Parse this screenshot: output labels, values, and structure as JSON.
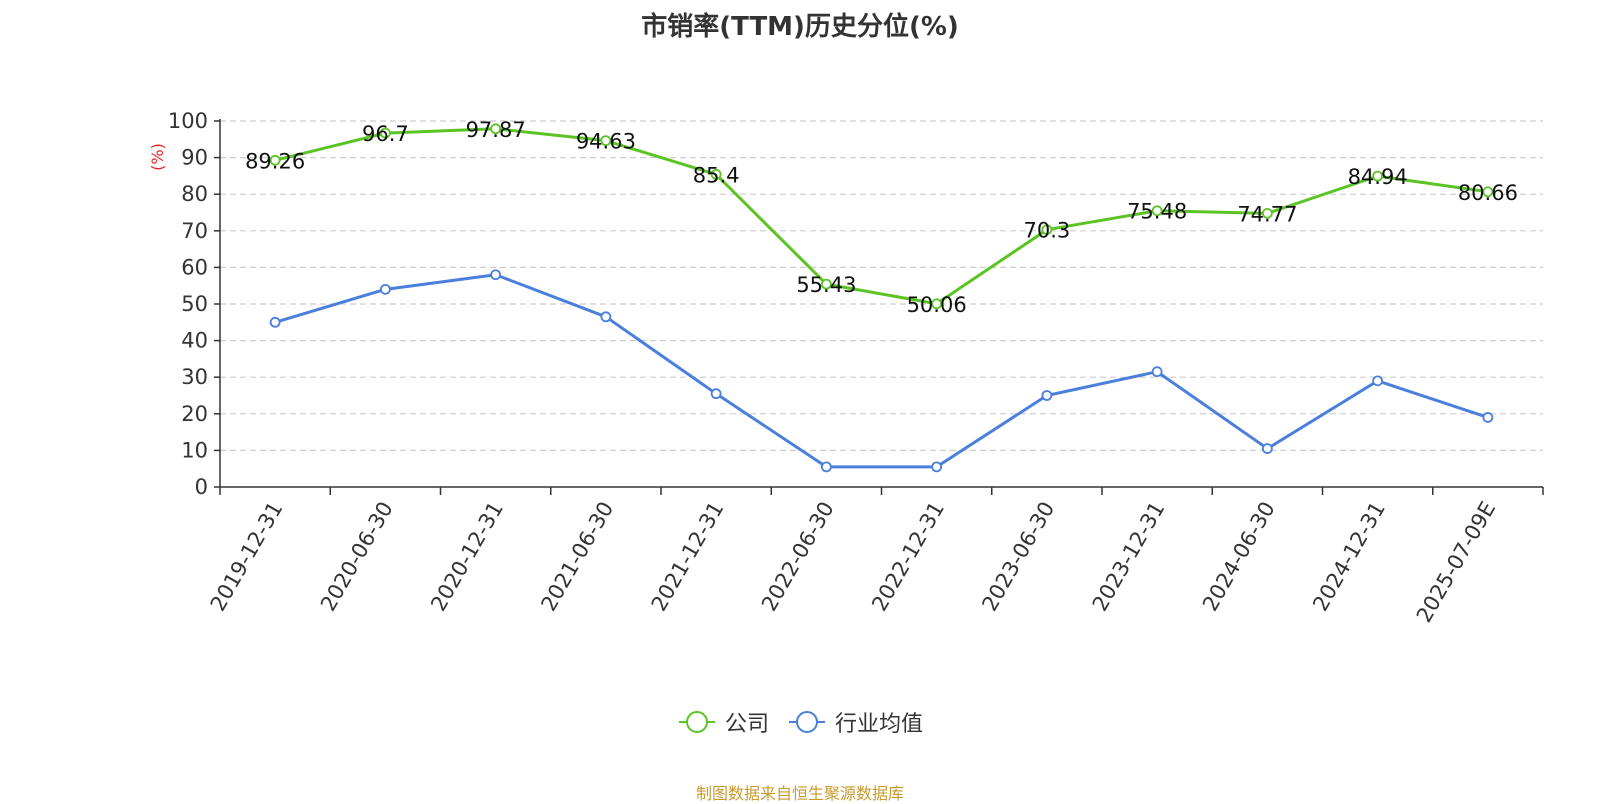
{
  "chart_data": {
    "type": "line",
    "title": "市销率(TTM)历史分位(%)",
    "ylabel": "(%)",
    "xlabel": "",
    "categories": [
      "2019-12-31",
      "2020-06-30",
      "2020-12-31",
      "2021-06-30",
      "2021-12-31",
      "2022-06-30",
      "2022-12-31",
      "2023-06-30",
      "2023-12-31",
      "2024-06-30",
      "2024-12-31",
      "2025-07-09E"
    ],
    "ylim": [
      0,
      100
    ],
    "yticks": [
      0,
      10,
      20,
      30,
      40,
      50,
      60,
      70,
      80,
      90,
      100
    ],
    "grid": true,
    "legend_position": "bottom",
    "series": [
      {
        "name": "公司",
        "color": "#5bc424",
        "show_labels": true,
        "values": [
          89.26,
          96.7,
          97.87,
          94.63,
          85.4,
          55.43,
          50.06,
          70.3,
          75.48,
          74.77,
          84.94,
          80.66
        ]
      },
      {
        "name": "行业均值",
        "color": "#4a7fdc",
        "show_labels": false,
        "values": [
          45,
          54,
          58,
          46.5,
          25.5,
          5.5,
          5.5,
          25,
          31.5,
          10.5,
          29,
          19
        ]
      }
    ]
  },
  "source": "制图数据来自恒生聚源数据库",
  "colors": {
    "ylabel": "#e8251f",
    "axis": "#333333",
    "grid": "#cccccc",
    "source": "#c79a2f"
  }
}
